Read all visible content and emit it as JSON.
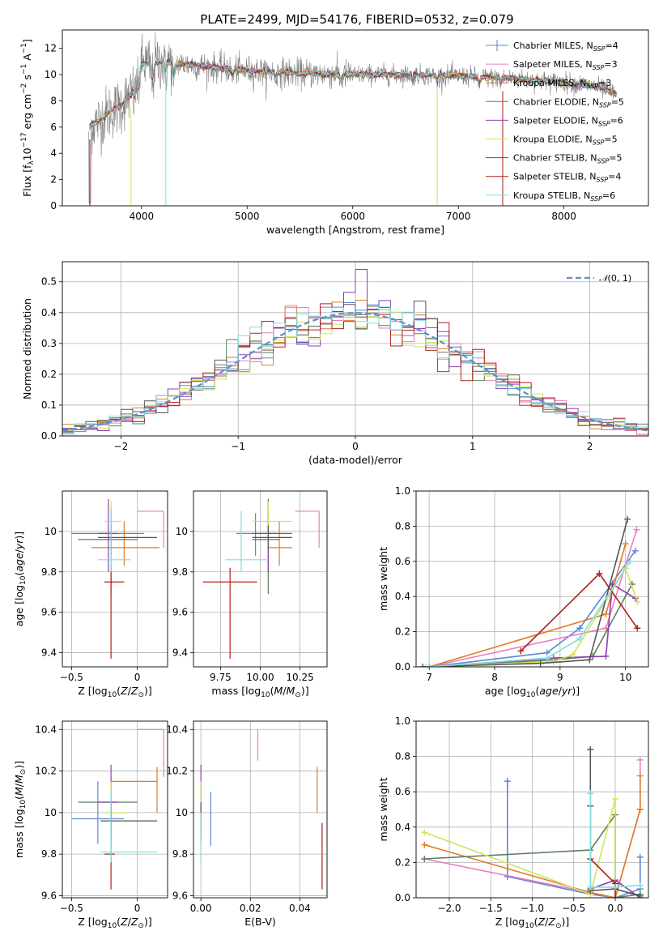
{
  "figure": {
    "title": "PLATE=2499, MJD=54176, FIBERID=0532, z=0.079"
  },
  "colors": {
    "Chabrier MILES": "#5b86d6",
    "Salpeter MILES": "#e87fbf",
    "Kroupa MILES": "#e07b2a",
    "Chabrier ELODIE": "#5a7f5f",
    "Salpeter ELODIE": "#8e3fb0",
    "Kroupa ELODIE": "#d3e35a",
    "Chabrier STELIB": "#555555",
    "Salpeter STELIB": "#b0201e",
    "Kroupa STELIB": "#7edfe0"
  },
  "chart_data": [
    {
      "id": "spectrum",
      "type": "line",
      "xlabel": "wavelength [Angstrom, rest frame]",
      "ylabel": "Flux [f_λ10^-17 erg cm^-2 s^-1 A^-1]",
      "xlim": [
        3250,
        8800
      ],
      "ylim": [
        0,
        13.4
      ],
      "xticks": [
        4000,
        5000,
        6000,
        7000,
        8000
      ],
      "yticks": [
        0,
        2,
        4,
        6,
        8,
        10,
        12
      ],
      "grid": false,
      "legend_position": "top-right",
      "data_x_range": [
        3500,
        8500
      ],
      "continuum_anchor_x": [
        3500,
        3600,
        3700,
        3800,
        3900,
        3950,
        4000,
        4200,
        4500,
        5000,
        5500,
        6000,
        6500,
        7000,
        7500,
        8000,
        8300,
        8500
      ],
      "continuum_anchor_y": [
        6.0,
        6.5,
        7.2,
        7.6,
        8.5,
        9.5,
        10.8,
        11.0,
        10.7,
        10.3,
        10.1,
        10.0,
        10.0,
        9.9,
        9.7,
        9.4,
        9.1,
        8.5
      ],
      "absorption_features_x": [
        3934,
        3969,
        4102,
        4227,
        4304,
        4861,
        5175,
        5270,
        5890,
        6563,
        6800,
        7200,
        7400
      ],
      "legend": [
        {
          "name": "Chabrier MILES",
          "nssp": "4"
        },
        {
          "name": "Salpeter MILES",
          "nssp": "3"
        },
        {
          "name": "Kroupa MILES",
          "nssp": "3"
        },
        {
          "name": "Chabrier ELODIE",
          "nssp": "5"
        },
        {
          "name": "Salpeter ELODIE",
          "nssp": "6"
        },
        {
          "name": "Kroupa ELODIE",
          "nssp": "5"
        },
        {
          "name": "Chabrier STELIB",
          "nssp": "5"
        },
        {
          "name": "Salpeter STELIB",
          "nssp": "4"
        },
        {
          "name": "Kroupa STELIB",
          "nssp": "6"
        }
      ]
    },
    {
      "id": "residuals",
      "type": "line",
      "xlabel": "(data-model)/error",
      "ylabel": "Normed distribution",
      "xlim": [
        -2.5,
        2.5
      ],
      "ylim": [
        0,
        0.565
      ],
      "xticks": [
        -2,
        -1,
        0,
        1,
        2
      ],
      "yticks": [
        0.0,
        0.1,
        0.2,
        0.3,
        0.4,
        0.5
      ],
      "grid": true,
      "bin_width": 0.1,
      "gaussian_label": "N(0,1)",
      "legend_position": "top-right"
    },
    {
      "id": "age_vs_Z",
      "type": "scatter",
      "xlabel": "Z [log10(Z/Z⊙)]",
      "ylabel": "age [log10(age/yr)]",
      "xlim": [
        -0.57,
        0.23
      ],
      "ylim": [
        9.33,
        10.2
      ],
      "xticks": [
        -0.5,
        0.0
      ],
      "yticks": [
        9.4,
        9.6,
        9.8,
        10.0
      ],
      "grid": true,
      "points": [
        {
          "series": "Chabrier MILES",
          "x": -0.2,
          "y": 9.99,
          "ex": [
            -0.5,
            0.05
          ],
          "ey": [
            9.88,
            10.09
          ]
        },
        {
          "series": "Salpeter MILES",
          "x": 0.2,
          "y": 10.1,
          "ex": [
            0.0,
            0.2
          ],
          "ey": [
            9.92,
            10.1
          ]
        },
        {
          "series": "Kroupa MILES",
          "x": -0.1,
          "y": 9.92,
          "ex": [
            -0.35,
            0.17
          ],
          "ey": [
            9.83,
            10.05
          ]
        },
        {
          "series": "Chabrier ELODIE",
          "x": -0.2,
          "y": 9.96,
          "ex": [
            -0.45,
            0.0
          ],
          "ey": [
            9.69,
            10.12
          ]
        },
        {
          "series": "Salpeter ELODIE",
          "x": -0.22,
          "y": 9.99,
          "ex": [
            -0.3,
            -0.15
          ],
          "ey": [
            9.8,
            10.16
          ]
        },
        {
          "series": "Kroupa ELODIE",
          "x": -0.2,
          "y": 10.05,
          "ex": [
            -0.25,
            -0.12
          ],
          "ey": [
            9.9,
            10.15
          ]
        },
        {
          "series": "Chabrier STELIB",
          "x": -0.2,
          "y": 9.97,
          "ex": [
            -0.3,
            0.15
          ],
          "ey": [
            9.9,
            10.03
          ]
        },
        {
          "series": "Salpeter STELIB",
          "x": -0.2,
          "y": 9.75,
          "ex": [
            -0.25,
            -0.1
          ],
          "ey": [
            9.37,
            9.82
          ]
        },
        {
          "series": "Kroupa STELIB",
          "x": -0.2,
          "y": 9.86,
          "ex": [
            -0.3,
            -0.05
          ],
          "ey": [
            9.8,
            10.1
          ]
        }
      ]
    },
    {
      "id": "age_vs_mass",
      "type": "scatter",
      "xlabel": "mass [log10(M/M⊙)]",
      "ylabel": "",
      "xlim": [
        9.58,
        10.42
      ],
      "ylim": [
        9.33,
        10.2
      ],
      "xticks": [
        9.75,
        10.0,
        10.25
      ],
      "tick_labels": [
        "9.75",
        "10.00",
        "10.25"
      ],
      "yticks": [
        9.4,
        9.6,
        9.8,
        10.0
      ],
      "grid": true,
      "points": [
        {
          "series": "Chabrier MILES",
          "x": 9.97,
          "y": 9.99,
          "ex": [
            9.85,
            10.1
          ],
          "ey": [
            9.88,
            10.09
          ]
        },
        {
          "series": "Salpeter MILES",
          "x": 10.37,
          "y": 10.1,
          "ex": [
            10.22,
            10.37
          ],
          "ey": [
            9.92,
            10.1
          ]
        },
        {
          "series": "Kroupa MILES",
          "x": 10.12,
          "y": 9.92,
          "ex": [
            10.05,
            10.2
          ],
          "ey": [
            9.83,
            10.05
          ]
        },
        {
          "series": "Chabrier ELODIE",
          "x": 10.05,
          "y": 9.96,
          "ex": [
            9.95,
            10.12
          ],
          "ey": [
            9.69,
            10.12
          ]
        },
        {
          "series": "Salpeter ELODIE",
          "x": 10.05,
          "y": 9.99,
          "ex": [
            9.95,
            10.2
          ],
          "ey": [
            9.8,
            10.16
          ]
        },
        {
          "series": "Kroupa ELODIE",
          "x": 10.05,
          "y": 10.05,
          "ex": [
            9.95,
            10.2
          ],
          "ey": [
            9.9,
            10.15
          ]
        },
        {
          "series": "Chabrier STELIB",
          "x": 10.05,
          "y": 9.97,
          "ex": [
            9.95,
            10.2
          ],
          "ey": [
            9.9,
            10.03
          ]
        },
        {
          "series": "Salpeter STELIB",
          "x": 9.81,
          "y": 9.75,
          "ex": [
            9.64,
            9.98
          ],
          "ey": [
            9.37,
            9.82
          ]
        },
        {
          "series": "Kroupa STELIB",
          "x": 9.88,
          "y": 9.86,
          "ex": [
            9.78,
            10.05
          ],
          "ey": [
            9.8,
            10.1
          ]
        }
      ]
    },
    {
      "id": "massweight_vs_age",
      "type": "line",
      "xlabel": "age [log10(age/yr)]",
      "ylabel": "mass weight",
      "xlim": [
        6.8,
        10.35
      ],
      "ylim": [
        0,
        1.0
      ],
      "xticks": [
        7,
        8,
        9,
        10
      ],
      "yticks": [
        0.0,
        0.2,
        0.4,
        0.6,
        0.8,
        1.0
      ],
      "grid": true,
      "series": [
        {
          "name": "Chabrier MILES",
          "x": [
            7.0,
            8.8,
            9.3,
            10.15
          ],
          "y": [
            0.0,
            0.08,
            0.22,
            0.66
          ]
        },
        {
          "name": "Salpeter MILES",
          "x": [
            7.0,
            9.7,
            10.17
          ],
          "y": [
            0.0,
            0.22,
            0.78
          ]
        },
        {
          "name": "Kroupa MILES",
          "x": [
            7.0,
            9.7,
            10.0
          ],
          "y": [
            0.0,
            0.3,
            0.7
          ]
        },
        {
          "name": "Chabrier ELODIE",
          "x": [
            7.0,
            8.9,
            9.5,
            10.1
          ],
          "y": [
            0.0,
            0.04,
            0.06,
            0.47
          ]
        },
        {
          "name": "Salpeter ELODIE",
          "x": [
            7.0,
            8.9,
            9.7,
            9.8,
            10.15
          ],
          "y": [
            0.0,
            0.05,
            0.06,
            0.47,
            0.39
          ]
        },
        {
          "name": "Kroupa ELODIE",
          "x": [
            6.95,
            8.9,
            9.2,
            10.0,
            10.18
          ],
          "y": [
            0.0,
            0.03,
            0.07,
            0.56,
            0.37
          ]
        },
        {
          "name": "Chabrier STELIB",
          "x": [
            6.9,
            8.7,
            9.45,
            10.03
          ],
          "y": [
            0.0,
            0.02,
            0.04,
            0.84
          ]
        },
        {
          "name": "Salpeter STELIB",
          "x": [
            8.4,
            9.6,
            10.18
          ],
          "y": [
            0.09,
            0.53,
            0.22
          ]
        },
        {
          "name": "Kroupa STELIB",
          "x": [
            7.0,
            8.8,
            9.3,
            10.07
          ],
          "y": [
            0.0,
            0.05,
            0.16,
            0.6
          ]
        }
      ]
    },
    {
      "id": "mass_vs_Z",
      "type": "scatter",
      "xlabel": "Z [log10(Z/Z⊙)]",
      "ylabel": "mass [log10(M/M⊙)]",
      "xlim": [
        -0.57,
        0.23
      ],
      "ylim": [
        9.59,
        10.44
      ],
      "xticks": [
        -0.5,
        0.0
      ],
      "yticks": [
        9.6,
        9.8,
        10.0,
        10.2,
        10.4
      ],
      "grid": true,
      "points": [
        {
          "series": "Chabrier MILES",
          "x": -0.3,
          "y": 9.97,
          "ex": [
            -0.5,
            -0.1
          ],
          "ey": [
            9.85,
            10.15
          ]
        },
        {
          "series": "Salpeter MILES",
          "x": 0.2,
          "y": 10.4,
          "ex": [
            0.0,
            0.2
          ],
          "ey": [
            10.17,
            10.4
          ]
        },
        {
          "series": "Kroupa MILES",
          "x": 0.15,
          "y": 10.15,
          "ex": [
            -0.2,
            0.15
          ],
          "ey": [
            10.0,
            10.22
          ]
        },
        {
          "series": "Chabrier ELODIE",
          "x": -0.2,
          "y": 10.05,
          "ex": [
            -0.45,
            0.0
          ],
          "ey": [
            9.9,
            10.15
          ]
        },
        {
          "series": "Salpeter ELODIE",
          "x": -0.2,
          "y": 10.05,
          "ex": [
            -0.3,
            -0.15
          ],
          "ey": [
            9.9,
            10.23
          ]
        },
        {
          "series": "Kroupa ELODIE",
          "x": -0.2,
          "y": 10.0,
          "ex": [
            -0.25,
            -0.08
          ],
          "ey": [
            9.9,
            10.15
          ]
        },
        {
          "series": "Chabrier STELIB",
          "x": -0.2,
          "y": 9.96,
          "ex": [
            -0.28,
            0.15
          ],
          "ey": [
            9.86,
            10.05
          ]
        },
        {
          "series": "Salpeter STELIB",
          "x": -0.2,
          "y": 9.8,
          "ex": [
            -0.25,
            -0.17
          ],
          "ey": [
            9.63,
            10.05
          ]
        },
        {
          "series": "Kroupa STELIB",
          "x": -0.2,
          "y": 9.81,
          "ex": [
            -0.28,
            0.15
          ],
          "ey": [
            9.76,
            10.1
          ]
        }
      ]
    },
    {
      "id": "mass_vs_EBV",
      "type": "scatter",
      "xlabel": "E(B-V)",
      "ylabel": "",
      "xlim": [
        -0.003,
        0.051
      ],
      "ylim": [
        9.59,
        10.44
      ],
      "xticks": [
        0.0,
        0.02,
        0.04
      ],
      "tick_labels": [
        "0.00",
        "0.02",
        "0.04"
      ],
      "yticks": [
        9.6,
        9.8,
        10.0,
        10.2,
        10.4
      ],
      "grid": true,
      "points": [
        {
          "series": "Chabrier MILES",
          "x": 0.004,
          "y": 9.97,
          "ey": [
            9.84,
            10.1
          ]
        },
        {
          "series": "Salpeter MILES",
          "x": 0.023,
          "y": 10.4,
          "ey": [
            10.25,
            10.4
          ]
        },
        {
          "series": "Kroupa MILES",
          "x": 0.047,
          "y": 10.15,
          "ey": [
            10.0,
            10.22
          ]
        },
        {
          "series": "Chabrier ELODIE",
          "x": 0.0,
          "y": 10.05,
          "ey": [
            9.9,
            10.15
          ]
        },
        {
          "series": "Salpeter ELODIE",
          "x": 0.0,
          "y": 10.05,
          "ey": [
            9.95,
            10.23
          ]
        },
        {
          "series": "Kroupa ELODIE",
          "x": 0.0,
          "y": 10.0,
          "ey": [
            9.9,
            10.15
          ]
        },
        {
          "series": "Chabrier STELIB",
          "x": 0.0,
          "y": 9.96,
          "ey": [
            9.86,
            10.05
          ]
        },
        {
          "series": "Salpeter STELIB",
          "x": 0.049,
          "y": 9.8,
          "ey": [
            9.63,
            9.95
          ]
        },
        {
          "series": "Kroupa STELIB",
          "x": 0.0,
          "y": 9.81,
          "ey": [
            9.76,
            10.0
          ]
        }
      ]
    },
    {
      "id": "massweight_vs_Z",
      "type": "line",
      "xlabel": "Z [log10(Z/Z⊙)]",
      "ylabel": "mass weight",
      "xlim": [
        -2.4,
        0.4
      ],
      "ylim": [
        0,
        1.0
      ],
      "xticks": [
        -2.0,
        -1.5,
        -1.0,
        -0.5,
        0.0
      ],
      "tick_labels": [
        "−2.0",
        "−1.5",
        "−1.0",
        "−0.5",
        "0.0"
      ],
      "yticks": [
        0.0,
        0.2,
        0.4,
        0.6,
        0.8,
        1.0
      ],
      "grid": true,
      "series": [
        {
          "name": "Chabrier MILES",
          "x": [
            -1.3,
            -1.3,
            -0.3,
            0.0,
            0.3,
            0.3
          ],
          "y": [
            0.66,
            0.12,
            0.02,
            0.0,
            0.05,
            0.23
          ]
        },
        {
          "name": "Salpeter MILES",
          "x": [
            -2.3,
            -0.3,
            0.0,
            0.3,
            0.3
          ],
          "y": [
            0.22,
            0.03,
            0.0,
            0.5,
            0.78
          ]
        },
        {
          "name": "Kroupa MILES",
          "x": [
            -2.3,
            -0.3,
            0.0,
            0.3,
            0.3
          ],
          "y": [
            0.3,
            0.03,
            0.0,
            0.5,
            0.69
          ]
        },
        {
          "name": "Chabrier ELODIE",
          "x": [
            -2.3,
            -0.3,
            0.0,
            0.0,
            0.3
          ],
          "y": [
            0.22,
            0.27,
            0.47,
            0.0,
            0.02
          ]
        },
        {
          "name": "Salpeter ELODIE",
          "x": [
            -0.3,
            0.0,
            0.3
          ],
          "y": [
            0.05,
            0.1,
            0.0
          ]
        },
        {
          "name": "Kroupa ELODIE",
          "x": [
            -2.3,
            -0.3,
            0.0,
            0.0
          ],
          "y": [
            0.37,
            0.02,
            0.56,
            0.0
          ]
        },
        {
          "name": "Chabrier STELIB",
          "x": [
            -0.3,
            -0.3,
            0.0,
            0.3
          ],
          "y": [
            0.84,
            0.04,
            0.05,
            0.01
          ]
        },
        {
          "name": "Salpeter STELIB",
          "x": [
            -0.3,
            -0.3,
            0.0,
            0.0
          ],
          "y": [
            0.52,
            0.22,
            0.08,
            0.0
          ]
        },
        {
          "name": "Kroupa STELIB",
          "x": [
            -0.3,
            -0.3,
            0.0,
            0.3
          ],
          "y": [
            0.59,
            0.06,
            0.06,
            0.07
          ]
        }
      ]
    }
  ]
}
